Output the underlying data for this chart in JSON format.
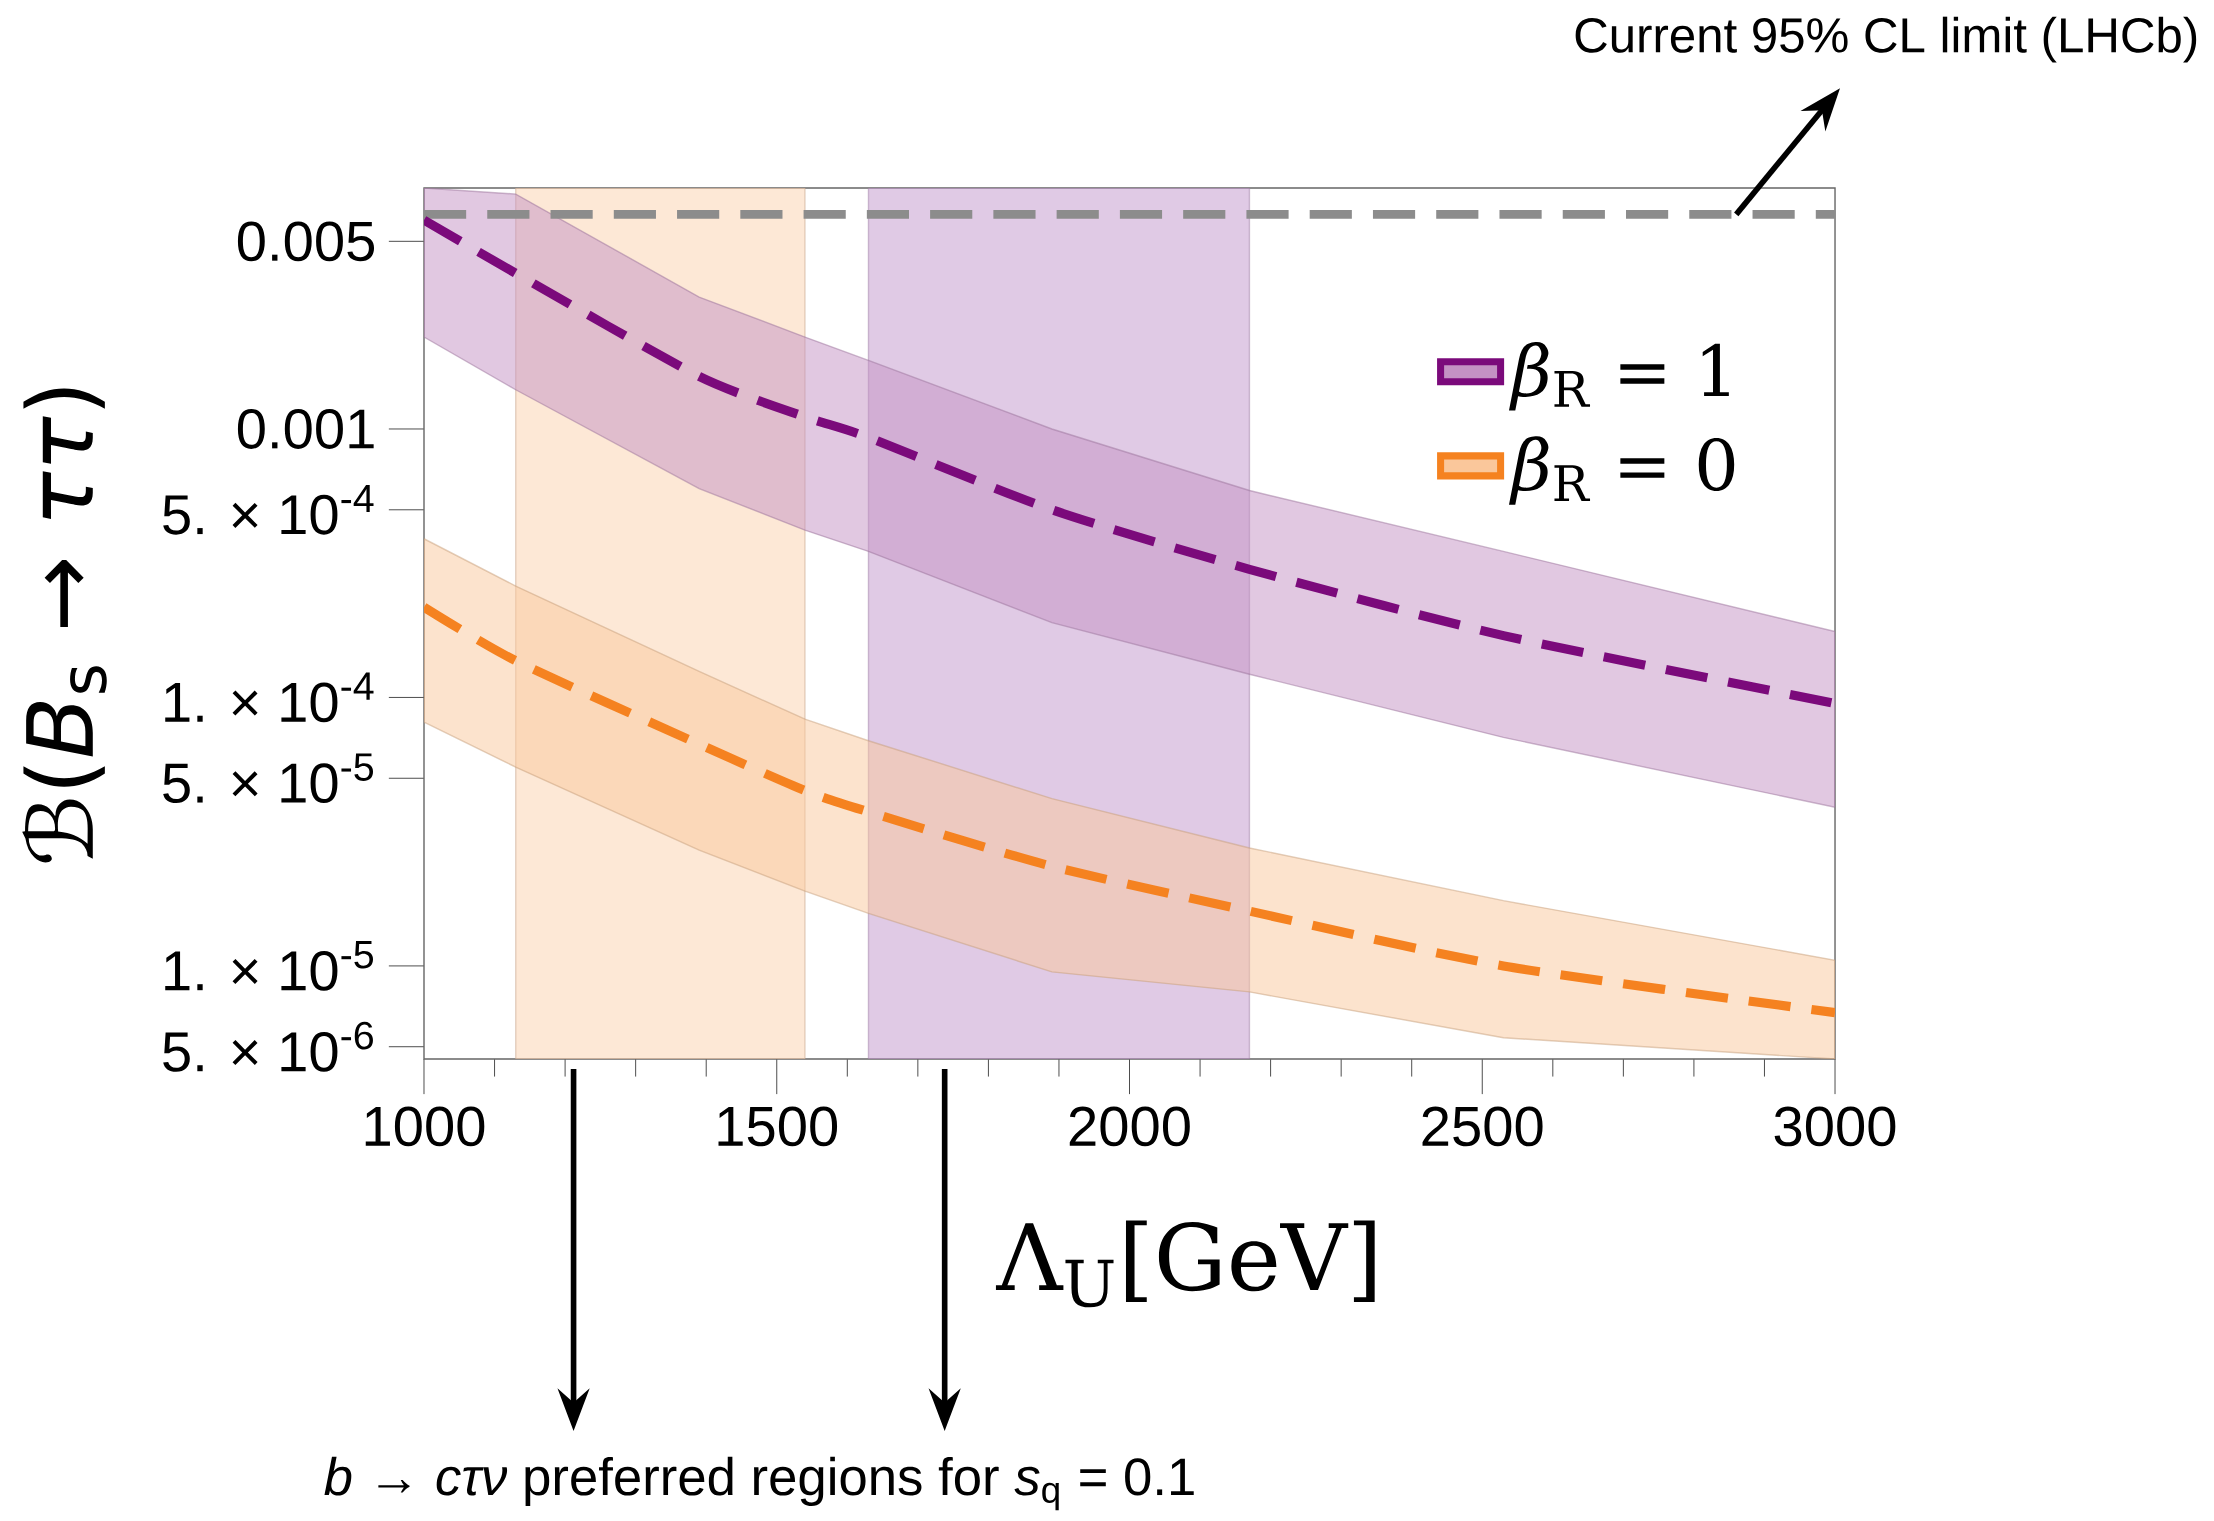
{
  "chart_data": {
    "type": "line",
    "xlabel": "Λ$_{U}$[GeV]",
    "ylabel": "ℬ(*B*$_{s}$ → *ττ*)",
    "x": [
      1000,
      1130,
      1390,
      1540,
      1630,
      1890,
      2170,
      2530,
      3000
    ],
    "series": [
      {
        "name": "*β*$_{R}$ = 1",
        "color": "#7b0a7b",
        "values": [
          0.006,
          0.0038,
          0.00157,
          0.00111,
          0.00093,
          0.0005,
          0.0003,
          0.00017,
          9.5e-05
        ],
        "upper": [
          0.0079,
          0.0075,
          0.0031,
          0.0022,
          0.0018,
          0.001,
          0.00059,
          0.00035,
          0.000176
        ],
        "lower": [
          0.0022,
          0.0014,
          0.0006,
          0.00042,
          0.00035,
          0.00019,
          0.000122,
          7.1e-05,
          3.9e-05
        ]
      },
      {
        "name": "*β*$_{R}$ = 0",
        "color": "#f58220",
        "values": [
          0.000217,
          0.000137,
          6.7e-05,
          4.5e-05,
          3.75e-05,
          2.35e-05,
          1.6e-05,
          1e-05,
          6.7e-06
        ],
        "upper": [
          0.00039,
          0.00026,
          0.000125,
          8.3e-05,
          6.9e-05,
          4.2e-05,
          2.75e-05,
          1.75e-05,
          1.05e-05
        ],
        "lower": [
          8.1e-05,
          5.5e-05,
          2.7e-05,
          1.9e-05,
          1.57e-05,
          9.5e-06,
          8e-06,
          5.4e-06,
          4.5e-06
        ]
      }
    ],
    "xlim": [
      1000,
      3000
    ],
    "xticks": [
      1000,
      1500,
      2000,
      2500,
      3000
    ],
    "ylim": [
      4.5e-06,
      0.0079
    ],
    "yticks": [
      0.005,
      0.001,
      {
        "value": 0.0005,
        "label": "5. × 10$^{-4}$"
      },
      {
        "value": 0.0001,
        "label": "1. × 10$^{-4}$"
      },
      {
        "value": 5e-05,
        "label": "5. × 10$^{-5}$"
      },
      {
        "value": 1e-05,
        "label": "1. × 10$^{-5}$"
      },
      {
        "value": 5e-06,
        "label": "5. × 10$^{-6}$"
      }
    ],
    "log": "y",
    "line_style": "dashed",
    "legend": "top right",
    "ref_lines": [
      {
        "axis": "y",
        "value": 0.0063,
        "label": "Current 95% CL limit (LHCb)",
        "color": "#8c8c8c",
        "line_style": "dashed"
      }
    ],
    "bands": [
      {
        "axis": "x",
        "from": 1130,
        "to": 1540,
        "color": "#fcd5b5"
      },
      {
        "axis": "x",
        "from": 1630,
        "to": 2170,
        "color": "#c79fd0"
      }
    ],
    "annotations": [
      "*b* → *cτν* preferred regions for *s*$_{q}$ = 0.1"
    ]
  }
}
